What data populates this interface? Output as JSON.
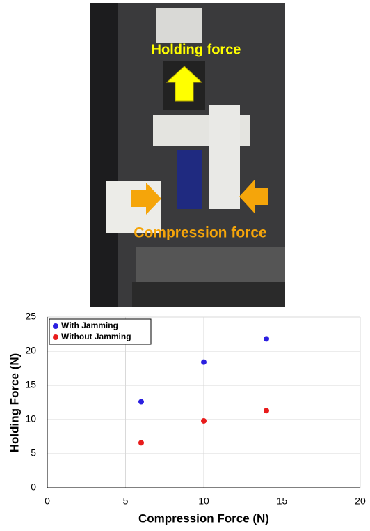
{
  "photo": {
    "labels": [
      "Holding force",
      "Compression force"
    ]
  },
  "chart_data": {
    "type": "scatter",
    "x": [
      6,
      10,
      14
    ],
    "series": [
      {
        "name": "With Jamming",
        "color": "#2b1fe0",
        "values": [
          12.6,
          18.4,
          21.8
        ]
      },
      {
        "name": "Without Jamming",
        "color": "#e81c1c",
        "values": [
          6.6,
          9.8,
          11.3
        ]
      }
    ],
    "xlabel": "Compression Force (N)",
    "ylabel": "Holding Force (N)",
    "xlim": [
      0,
      20
    ],
    "xticks": [
      0,
      5,
      10,
      15,
      20
    ],
    "ylim": [
      0,
      25
    ],
    "yticks": [
      0,
      5,
      10,
      15,
      20,
      25
    ],
    "grid": true,
    "legend": "top-left"
  }
}
